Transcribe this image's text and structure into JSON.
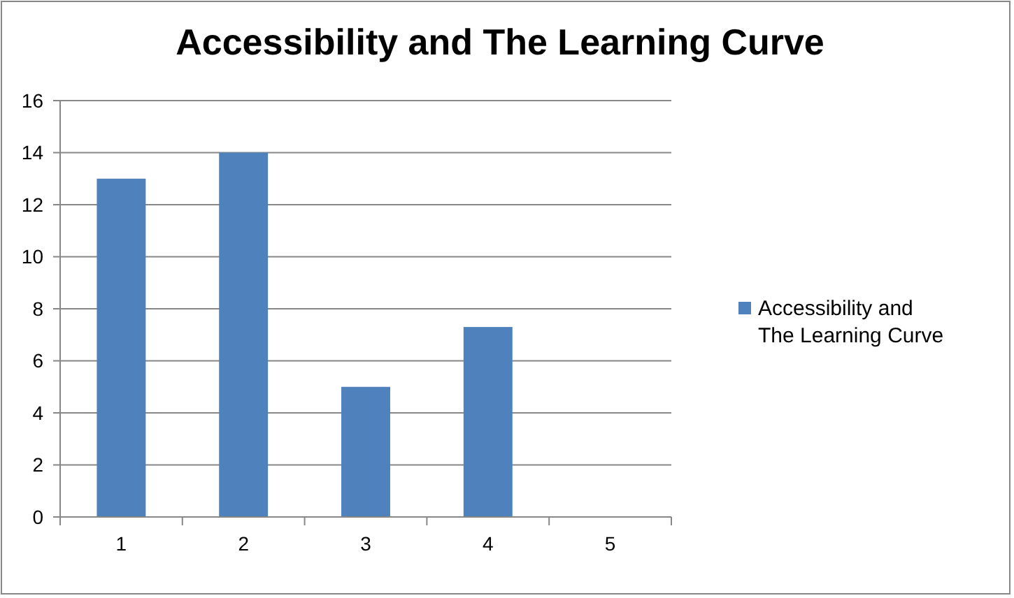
{
  "chart_data": {
    "type": "bar",
    "title": "Accessibility and The Learning Curve",
    "categories": [
      "1",
      "2",
      "3",
      "4",
      "5"
    ],
    "series": [
      {
        "name": "Accessibility and The Learning Curve",
        "color": "#4f81bd",
        "values": [
          13,
          14,
          5,
          7.3,
          null
        ]
      }
    ],
    "ylim": [
      0,
      16
    ],
    "yticks": [
      0,
      2,
      4,
      6,
      8,
      10,
      12,
      14,
      16
    ],
    "grid": "y",
    "legend": "right"
  }
}
